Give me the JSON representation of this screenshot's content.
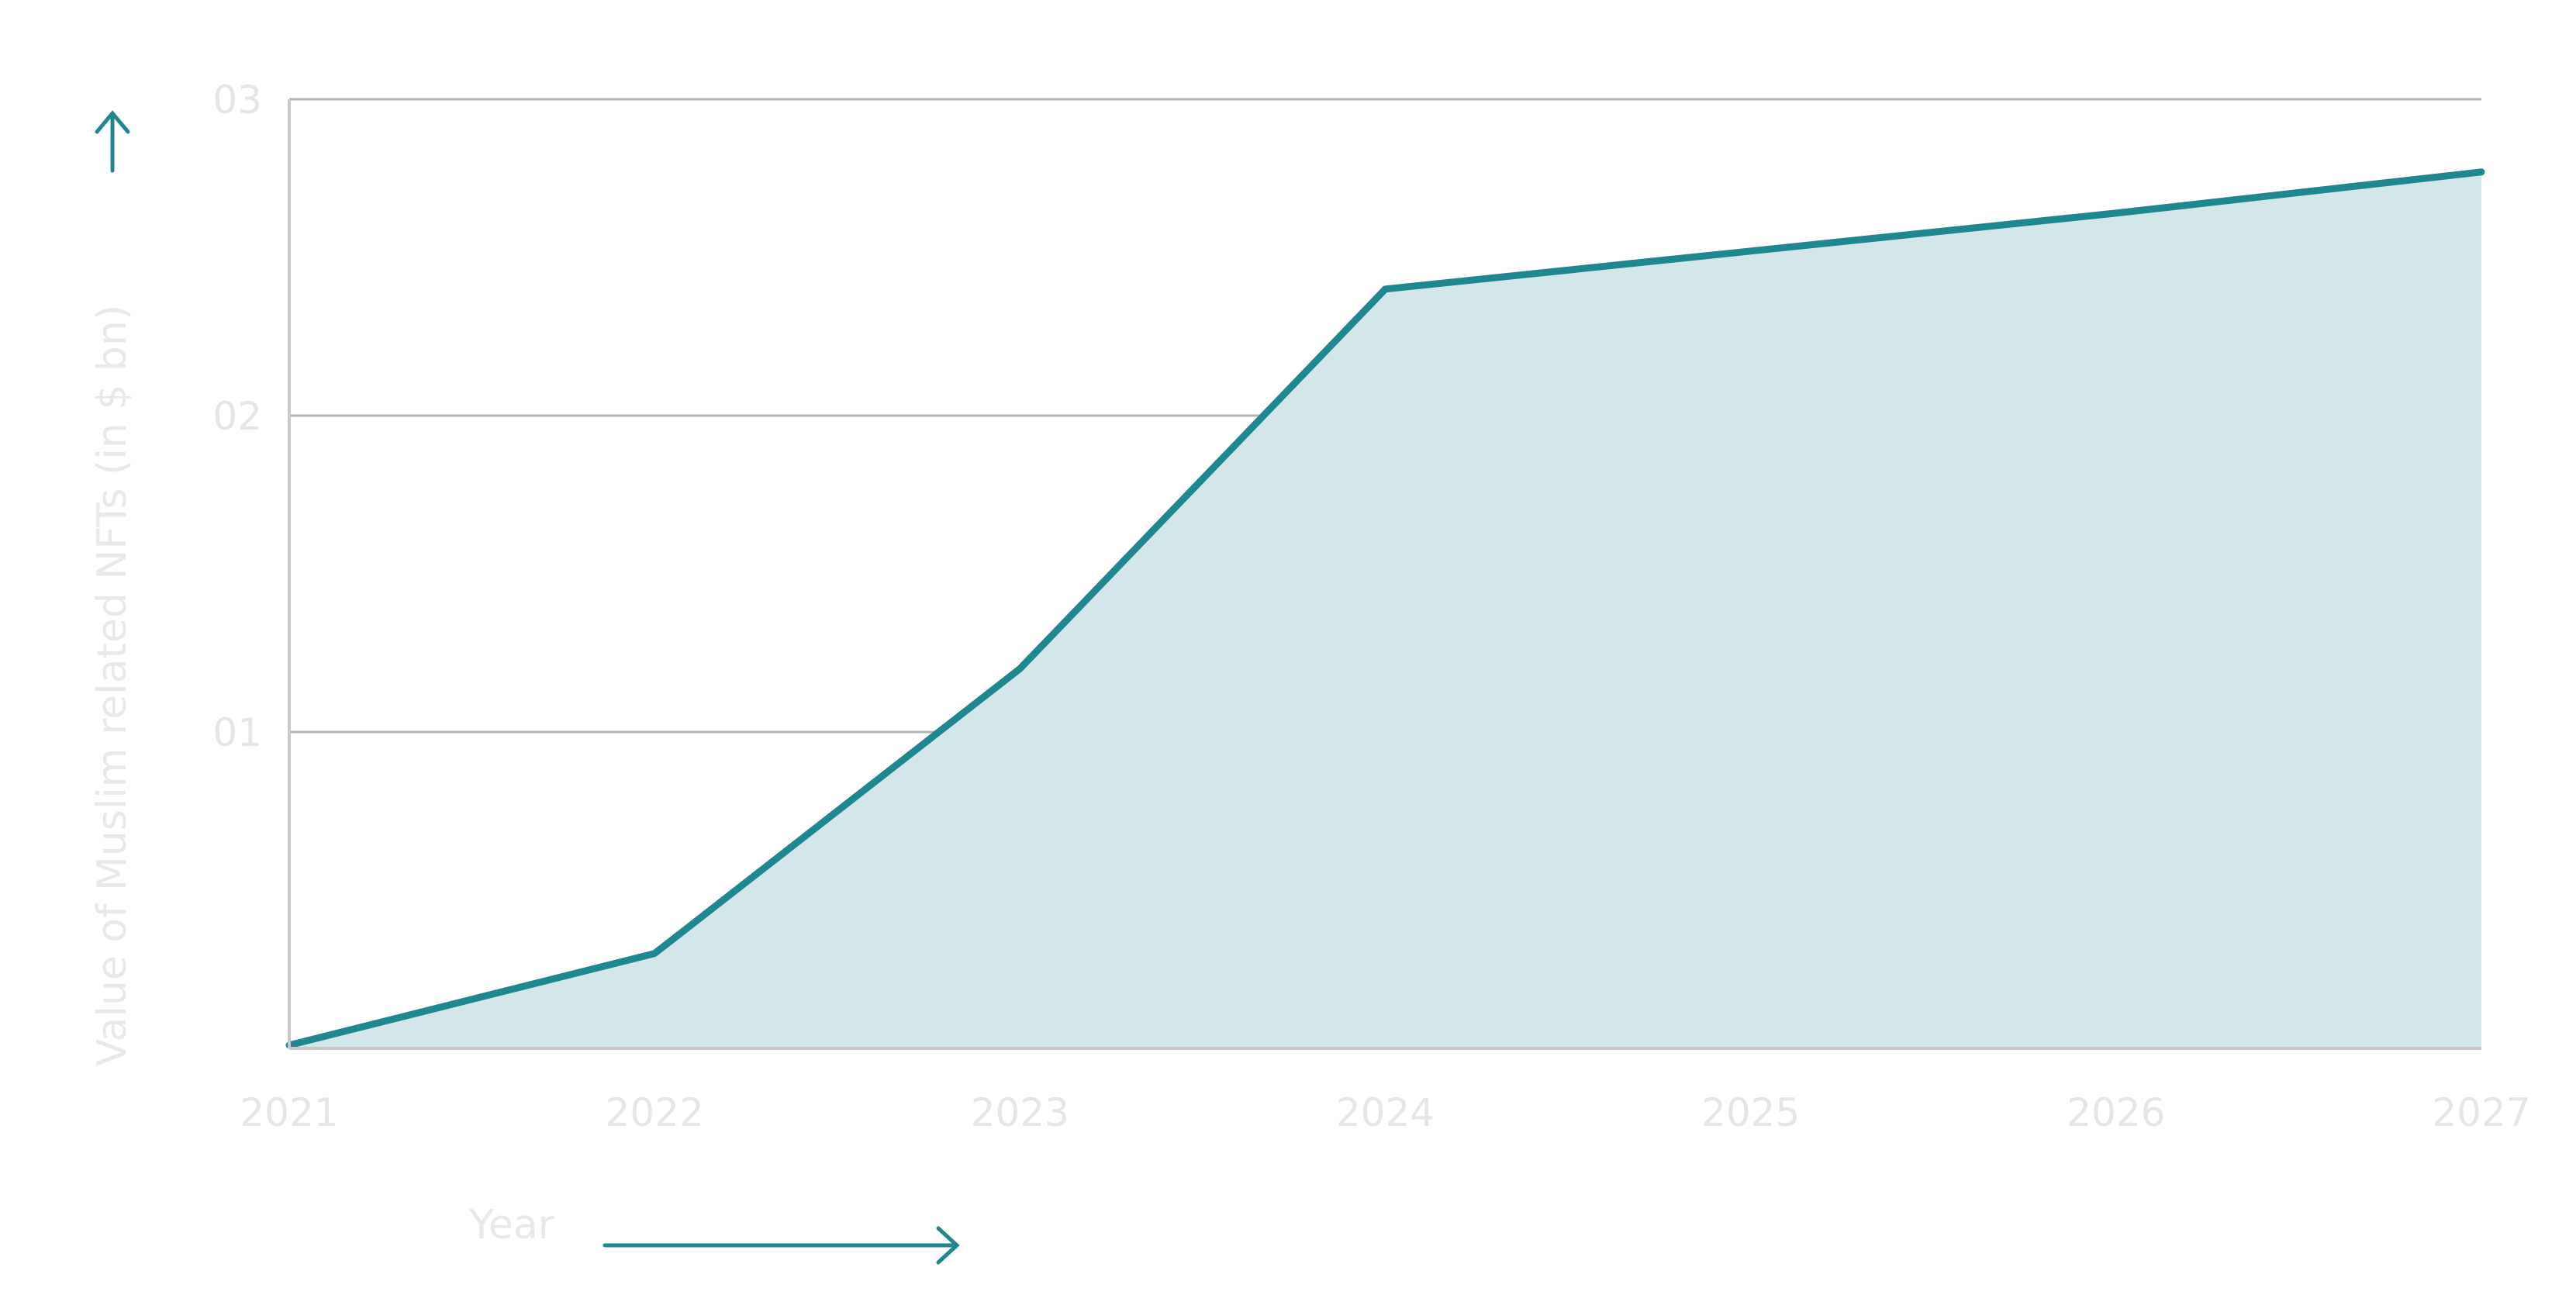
{
  "chart_data": {
    "type": "area",
    "x": [
      2021,
      2022,
      2023,
      2024,
      2025,
      2026,
      2027
    ],
    "series": [
      {
        "values": [
          0.01,
          0.3,
          1.2,
          2.4,
          2.52,
          2.64,
          2.77
        ]
      }
    ],
    "x_tick_labels": [
      "2021",
      "2022",
      "2023",
      "2024",
      "2025",
      "2026",
      "2027"
    ],
    "y_tick_labels": [
      "01",
      "02",
      "03"
    ],
    "y_ticks": [
      1,
      2,
      3
    ],
    "xlabel": "Year",
    "ylabel": "Value of Muslim related NFTs (in $ bn)",
    "xlim": [
      2021,
      2027
    ],
    "ylim": [
      0,
      3
    ],
    "grid": true,
    "colors": {
      "line": "#20868f",
      "fill": "#d3e7ea",
      "grid": "#b4b4b4",
      "arrow": "#20868f",
      "tick_text": "#e6e6e6"
    }
  }
}
